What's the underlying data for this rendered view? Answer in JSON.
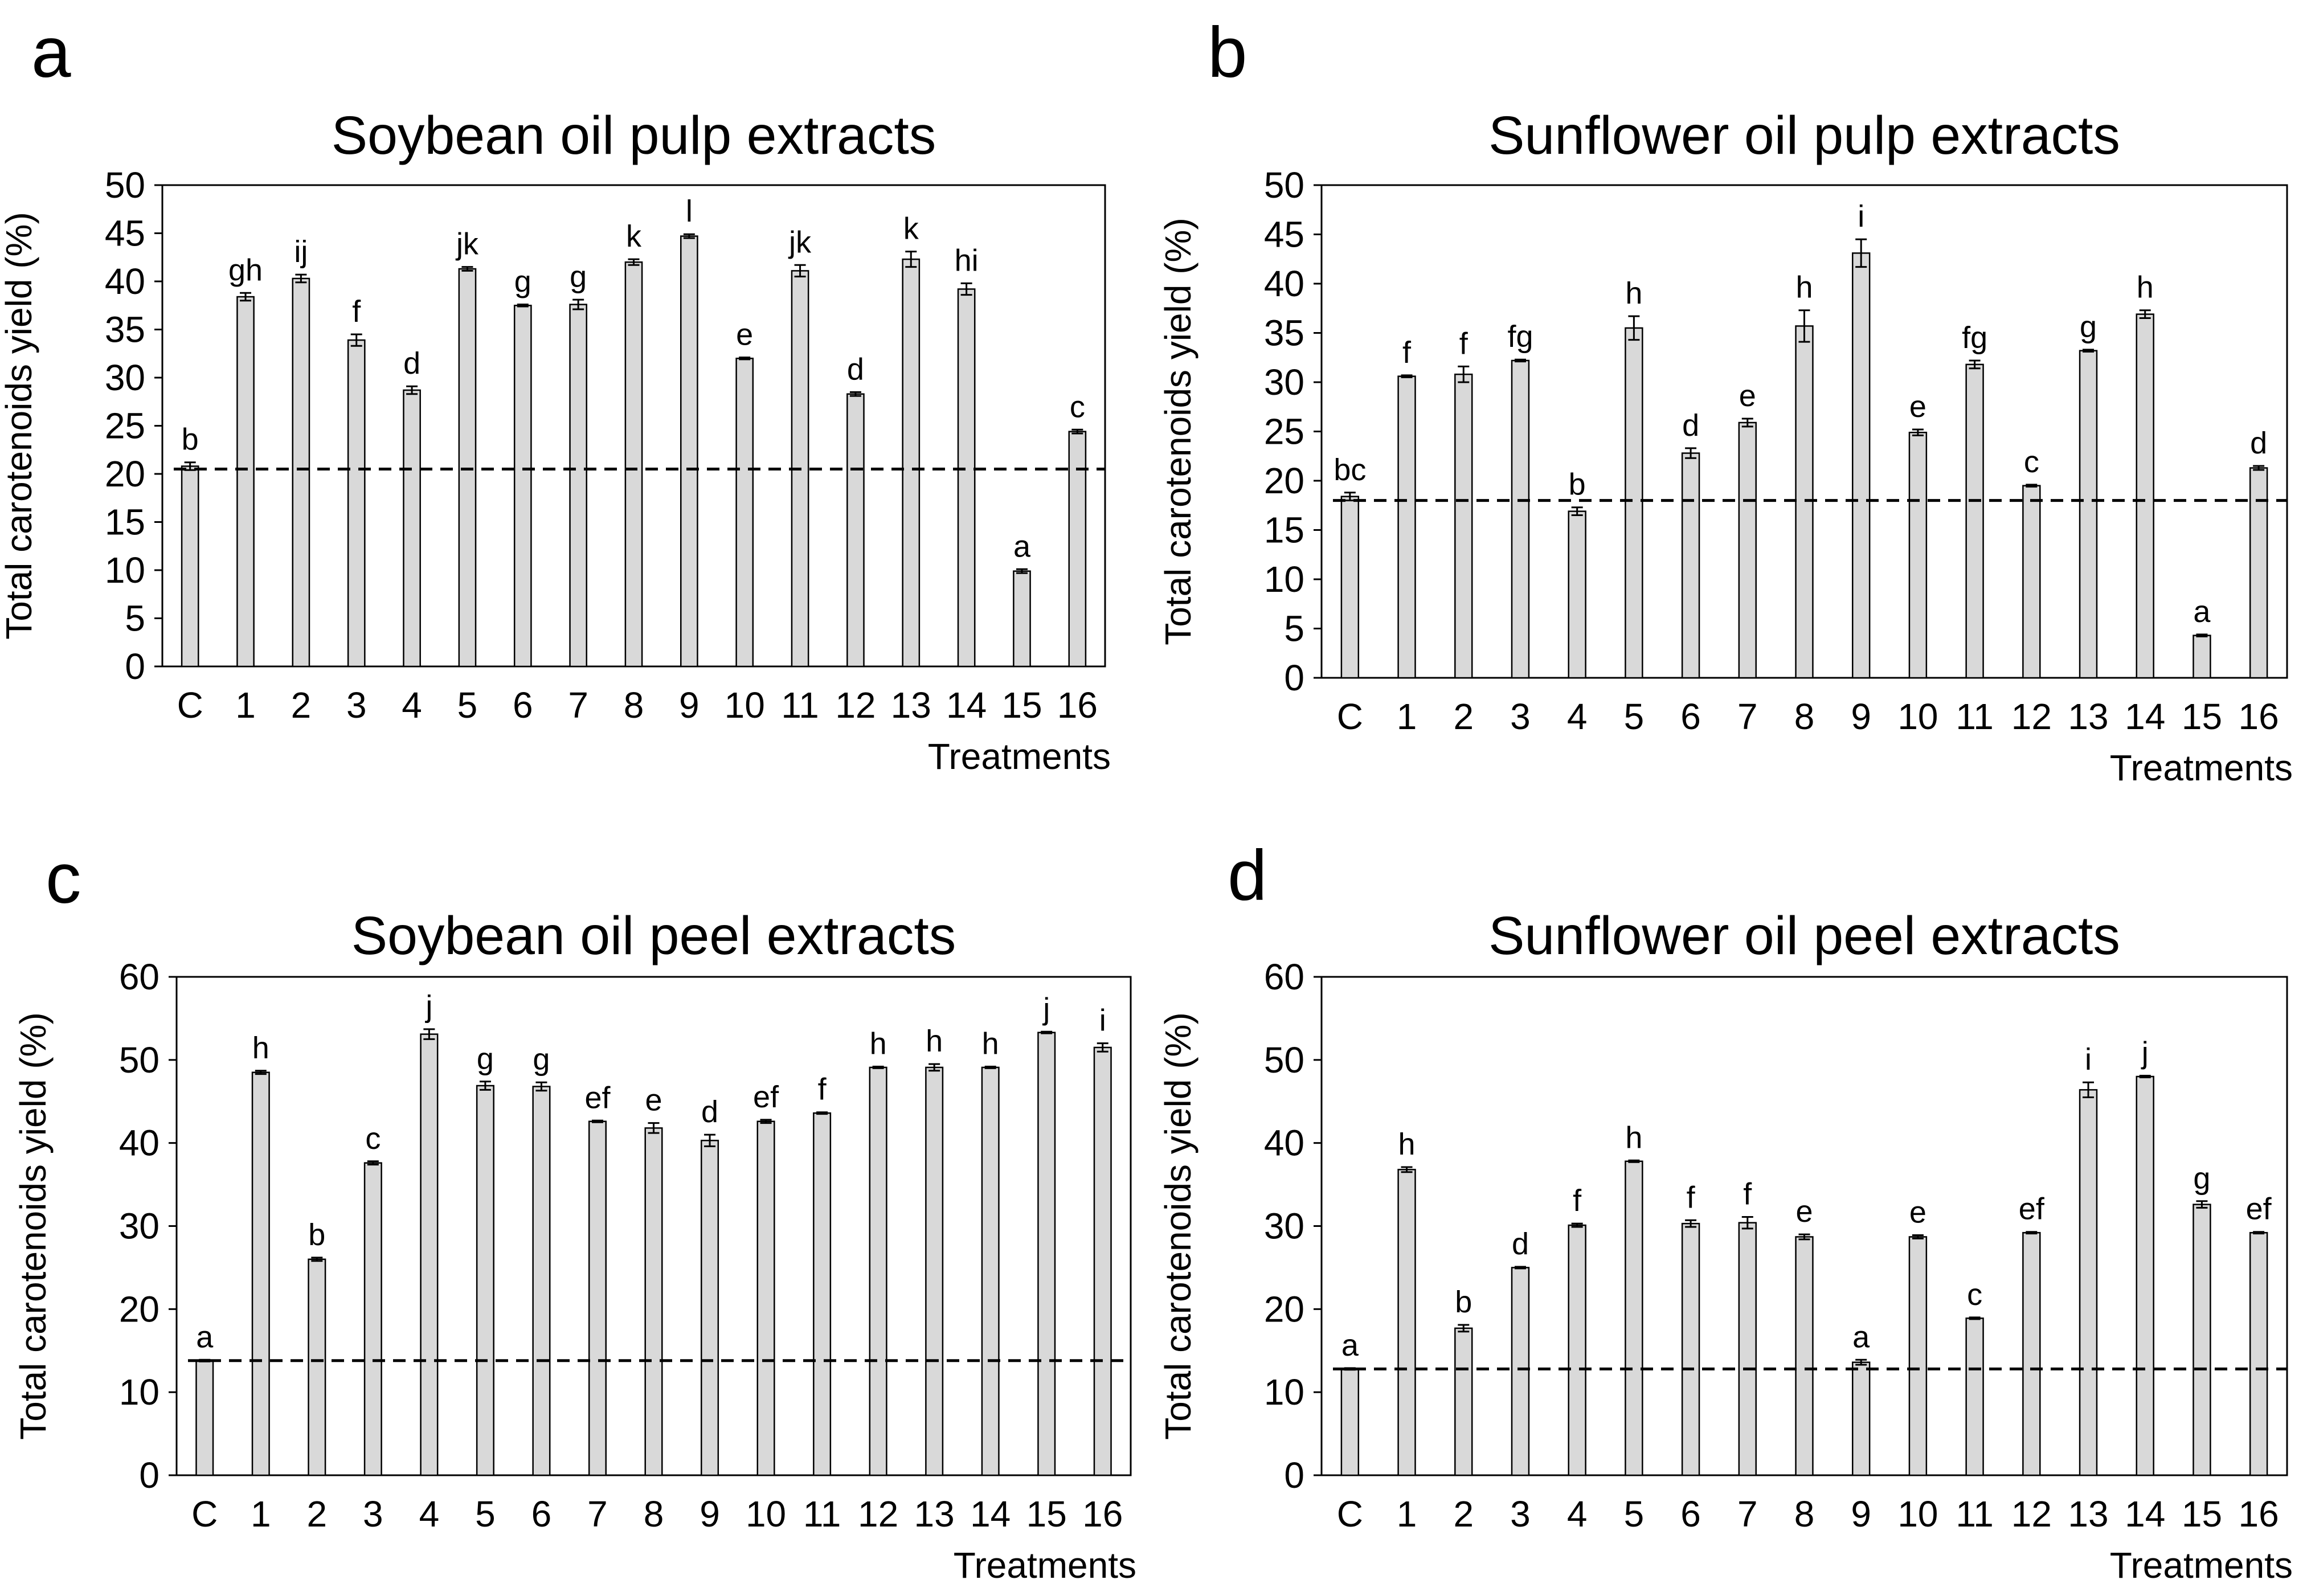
{
  "chart_data": [
    {
      "type": "bar",
      "panel": "a",
      "title": "Soybean oil pulp extracts",
      "xlabel": "Treatments",
      "ylabel": "Total carotenoids yield (%)",
      "ylim": [
        0,
        50
      ],
      "yticks": [
        0,
        5,
        10,
        15,
        20,
        25,
        30,
        35,
        40,
        45,
        50
      ],
      "categories": [
        "C",
        "1",
        "2",
        "3",
        "4",
        "5",
        "6",
        "7",
        "8",
        "9",
        "10",
        "11",
        "12",
        "13",
        "14",
        "15",
        "16"
      ],
      "values": [
        20.8,
        38.4,
        40.3,
        33.9,
        28.7,
        41.3,
        37.5,
        37.6,
        42.0,
        44.7,
        32.0,
        41.1,
        28.3,
        42.3,
        39.2,
        9.9,
        24.4
      ],
      "errors": [
        0.4,
        0.4,
        0.4,
        0.6,
        0.4,
        0.2,
        0.1,
        0.5,
        0.3,
        0.2,
        0.1,
        0.6,
        0.2,
        0.8,
        0.6,
        0.2,
        0.2
      ],
      "letters": [
        "b",
        "gh",
        "ij",
        "f",
        "d",
        "jk",
        "g",
        "g",
        "k",
        "l",
        "e",
        "jk",
        "d",
        "k",
        "hi",
        "a",
        "c"
      ],
      "reference_line": 20.5,
      "grid": false,
      "legend": "none"
    },
    {
      "type": "bar",
      "panel": "b",
      "title": "Sunflower oil pulp extracts",
      "xlabel": "Treatments",
      "ylabel": "Total carotenoids yield (%)",
      "ylim": [
        0,
        50
      ],
      "yticks": [
        0,
        5,
        10,
        15,
        20,
        25,
        30,
        35,
        40,
        45,
        50
      ],
      "categories": [
        "C",
        "1",
        "2",
        "3",
        "4",
        "5",
        "6",
        "7",
        "8",
        "9",
        "10",
        "11",
        "12",
        "13",
        "14",
        "15",
        "16"
      ],
      "values": [
        18.4,
        30.6,
        30.8,
        32.2,
        16.9,
        35.5,
        22.8,
        25.9,
        35.7,
        43.1,
        24.9,
        31.8,
        19.5,
        33.2,
        36.9,
        4.3,
        21.3
      ],
      "errors": [
        0.4,
        0.1,
        0.8,
        0.1,
        0.4,
        1.2,
        0.5,
        0.4,
        1.6,
        1.4,
        0.3,
        0.4,
        0.1,
        0.1,
        0.4,
        0.1,
        0.2
      ],
      "letters": [
        "bc",
        "f",
        "f",
        "fg",
        "b",
        "h",
        "d",
        "e",
        "h",
        "i",
        "e",
        "fg",
        "c",
        "g",
        "h",
        "a",
        "d"
      ],
      "reference_line": 18.0,
      "grid": false,
      "legend": "none"
    },
    {
      "type": "bar",
      "panel": "c",
      "title": "Soybean oil peel extracts",
      "xlabel": "Treatments",
      "ylabel": "Total carotenoids yield (%)",
      "ylim": [
        0,
        60
      ],
      "yticks": [
        0,
        10,
        20,
        30,
        40,
        50,
        60
      ],
      "categories": [
        "C",
        "1",
        "2",
        "3",
        "4",
        "5",
        "6",
        "7",
        "8",
        "9",
        "10",
        "11",
        "12",
        "13",
        "14",
        "15",
        "16"
      ],
      "values": [
        13.8,
        48.5,
        26.0,
        37.6,
        53.1,
        46.9,
        46.8,
        42.6,
        41.8,
        40.3,
        42.6,
        43.6,
        49.1,
        49.1,
        49.1,
        53.3,
        51.5
      ],
      "errors": [
        0.1,
        0.2,
        0.2,
        0.2,
        0.6,
        0.5,
        0.5,
        0.1,
        0.6,
        0.7,
        0.2,
        0.1,
        0.1,
        0.4,
        0.1,
        0.1,
        0.5
      ],
      "letters": [
        "a",
        "h",
        "b",
        "c",
        "j",
        "g",
        "g",
        "ef",
        "e",
        "d",
        "ef",
        "f",
        "h",
        "h",
        "h",
        "j",
        "i"
      ],
      "reference_line": 13.8,
      "grid": false,
      "legend": "none"
    },
    {
      "type": "bar",
      "panel": "d",
      "title": "Sunflower oil peel extracts",
      "xlabel": "Treatments",
      "ylabel": "Total carotenoids yield (%)",
      "ylim": [
        0,
        60
      ],
      "yticks": [
        0,
        10,
        20,
        30,
        40,
        50,
        60
      ],
      "categories": [
        "C",
        "1",
        "2",
        "3",
        "4",
        "5",
        "6",
        "7",
        "8",
        "9",
        "10",
        "11",
        "12",
        "13",
        "14",
        "15",
        "16"
      ],
      "values": [
        12.8,
        36.8,
        17.7,
        25.0,
        30.1,
        37.8,
        30.3,
        30.4,
        28.7,
        13.6,
        28.7,
        18.9,
        29.2,
        46.4,
        48.0,
        32.6,
        29.2
      ],
      "errors": [
        0.1,
        0.3,
        0.4,
        0.1,
        0.2,
        0.1,
        0.4,
        0.7,
        0.3,
        0.3,
        0.2,
        0.1,
        0.1,
        0.9,
        0.1,
        0.4,
        0.1
      ],
      "letters": [
        "a",
        "h",
        "b",
        "d",
        "f",
        "h",
        "f",
        "f",
        "e",
        "a",
        "e",
        "c",
        "ef",
        "i",
        "j",
        "g",
        "ef"
      ],
      "reference_line": 12.8,
      "grid": false,
      "legend": "none"
    }
  ],
  "colors": {
    "bar_fill": "#d9d9d9",
    "bar_stroke": "#000000",
    "axis": "#000000",
    "reference_line": "#000000"
  }
}
